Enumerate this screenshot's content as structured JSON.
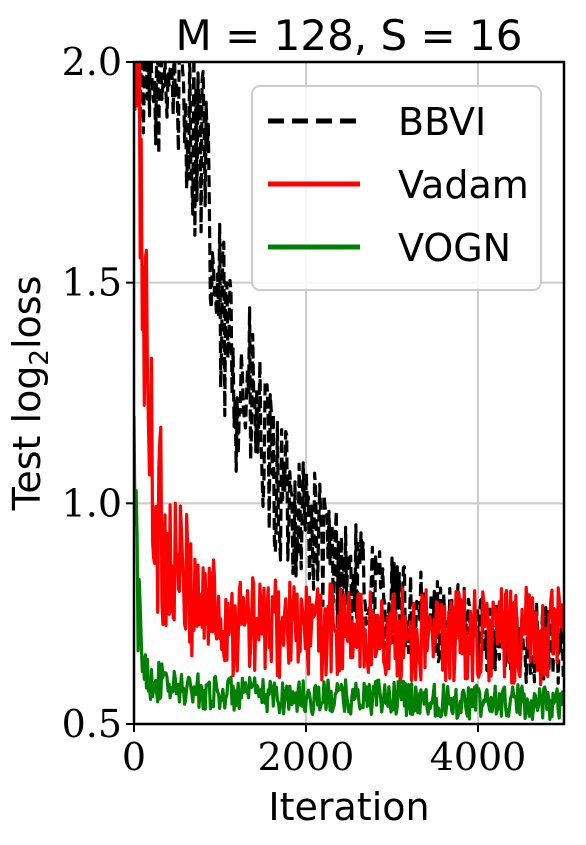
{
  "chart_data": {
    "type": "line",
    "title": "M = 128, S = 16",
    "xlabel": "Iteration",
    "ylabel": "Test log",
    "ylabel_sub": "2",
    "ylabel_suffix": "loss",
    "xlim": [
      0,
      5000
    ],
    "ylim": [
      0.5,
      2.0
    ],
    "xticks": [
      0,
      2000,
      4000
    ],
    "xtick_labels": [
      "0",
      "2000",
      "4000"
    ],
    "yticks": [
      0.5,
      1.0,
      1.5,
      2.0
    ],
    "ytick_labels": [
      "0.5",
      "1.0",
      "1.5",
      "2.0"
    ],
    "grid": true,
    "legend_position": "top-right",
    "series": [
      {
        "name": "BBVI",
        "color": "#000000",
        "style": "dashed",
        "x": [
          0,
          100,
          200,
          300,
          400,
          500,
          600,
          700,
          800,
          900,
          1000,
          1200,
          1400,
          1600,
          1800,
          2000,
          2200,
          2400,
          2600,
          2800,
          3000,
          3200,
          3400,
          3600,
          3800,
          4000,
          4200,
          4400,
          4600,
          4800,
          5000
        ],
        "y": [
          2.0,
          1.95,
          1.9,
          1.95,
          2.0,
          1.95,
          1.9,
          1.85,
          1.8,
          1.55,
          1.4,
          1.3,
          1.2,
          1.05,
          1.0,
          0.97,
          0.9,
          0.85,
          0.82,
          0.8,
          0.77,
          0.75,
          0.74,
          0.73,
          0.72,
          0.71,
          0.7,
          0.69,
          0.69,
          0.68,
          0.68
        ],
        "noise": [
          0.05,
          0.08,
          0.1,
          0.1,
          0.1,
          0.12,
          0.12,
          0.15,
          0.15,
          0.15,
          0.15,
          0.15,
          0.13,
          0.12,
          0.1,
          0.1,
          0.09,
          0.09,
          0.08,
          0.08,
          0.07,
          0.07,
          0.06,
          0.06,
          0.06,
          0.06,
          0.06,
          0.06,
          0.06,
          0.06,
          0.06
        ]
      },
      {
        "name": "Vadam",
        "color": "#ff0000",
        "style": "solid",
        "x": [
          0,
          50,
          100,
          150,
          200,
          300,
          400,
          600,
          800,
          1000,
          1200,
          1500,
          2000,
          2500,
          3000,
          3500,
          4000,
          4500,
          5000
        ],
        "y": [
          2.0,
          1.9,
          1.6,
          1.3,
          1.1,
          0.95,
          0.88,
          0.82,
          0.78,
          0.75,
          0.73,
          0.72,
          0.71,
          0.71,
          0.7,
          0.7,
          0.7,
          0.7,
          0.7
        ],
        "noise": [
          0.1,
          0.2,
          0.25,
          0.2,
          0.18,
          0.15,
          0.12,
          0.1,
          0.09,
          0.08,
          0.08,
          0.07,
          0.07,
          0.07,
          0.07,
          0.07,
          0.07,
          0.07,
          0.07
        ]
      },
      {
        "name": "VOGN",
        "color": "#008000",
        "style": "solid",
        "x": [
          0,
          20,
          50,
          100,
          200,
          500,
          1000,
          2000,
          3000,
          4000,
          5000
        ],
        "y": [
          1.1,
          0.9,
          0.75,
          0.65,
          0.6,
          0.58,
          0.57,
          0.56,
          0.56,
          0.55,
          0.55
        ],
        "noise": [
          0.15,
          0.12,
          0.08,
          0.04,
          0.03,
          0.025,
          0.025,
          0.025,
          0.025,
          0.025,
          0.025
        ]
      }
    ]
  }
}
